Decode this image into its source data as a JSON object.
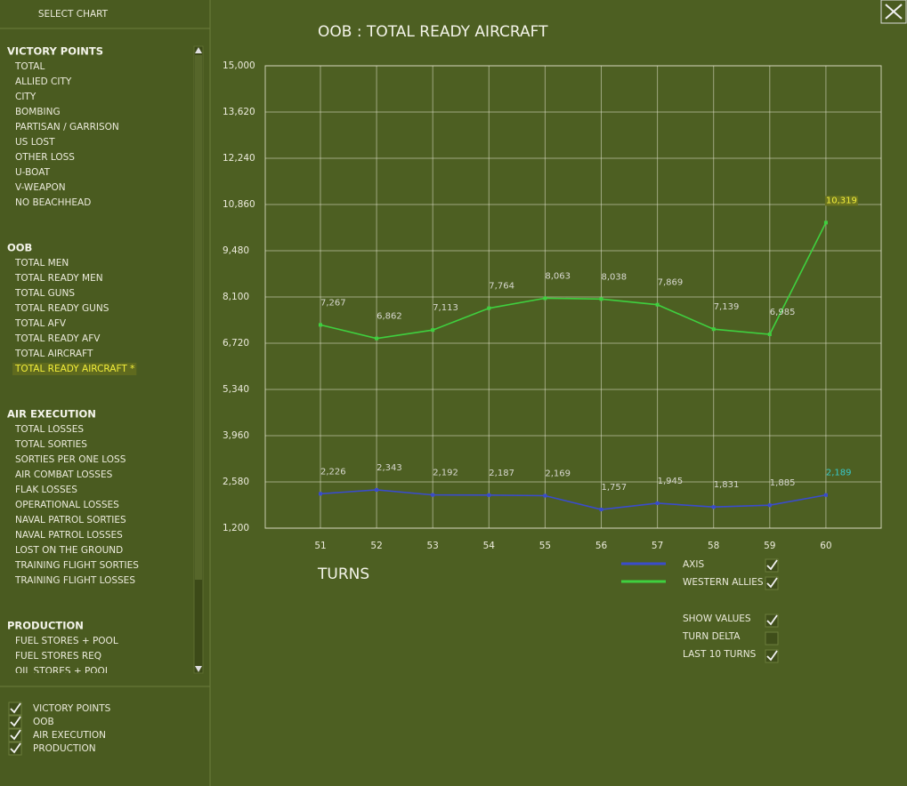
{
  "sidebar": {
    "header": "SELECT CHART",
    "groups": [
      {
        "title": "VICTORY POINTS",
        "items": [
          "TOTAL",
          "ALLIED CITY",
          "CITY",
          "BOMBING",
          "PARTISAN / GARRISON",
          "US LOST",
          "OTHER LOSS",
          "U-BOAT",
          "V-WEAPON",
          "NO BEACHHEAD"
        ]
      },
      {
        "title": "OOB",
        "items": [
          "TOTAL MEN",
          "TOTAL READY MEN",
          "TOTAL GUNS",
          "TOTAL READY GUNS",
          "TOTAL AFV",
          "TOTAL READY AFV",
          "TOTAL AIRCRAFT",
          "TOTAL READY AIRCRAFT *"
        ]
      },
      {
        "title": "AIR EXECUTION",
        "items": [
          "TOTAL LOSSES",
          "TOTAL SORTIES",
          "SORTIES PER ONE LOSS",
          "AIR COMBAT LOSSES",
          "FLAK LOSSES",
          "OPERATIONAL LOSSES",
          "NAVAL PATROL SORTIES",
          "NAVAL PATROL LOSSES",
          "LOST ON THE GROUND",
          "TRAINING FLIGHT SORTIES",
          "TRAINING FLIGHT LOSSES"
        ]
      },
      {
        "title": "PRODUCTION",
        "items": [
          "FUEL STORES + POOL",
          "FUEL STORES REQ",
          "OIL STORES + POOL"
        ]
      }
    ],
    "selected": [
      1,
      7
    ],
    "filters": [
      {
        "label": "VICTORY POINTS",
        "checked": true
      },
      {
        "label": "OOB",
        "checked": true
      },
      {
        "label": "AIR EXECUTION",
        "checked": true
      },
      {
        "label": "PRODUCTION",
        "checked": true
      }
    ]
  },
  "chart_data": {
    "type": "line",
    "title": "OOB : TOTAL READY AIRCRAFT",
    "x_label": "TURNS",
    "categories": [
      "51",
      "52",
      "53",
      "54",
      "55",
      "56",
      "57",
      "58",
      "59",
      "60"
    ],
    "ylim": [
      1200,
      15000
    ],
    "yticks": [
      {
        "value": 1200,
        "label": "1,200"
      },
      {
        "value": 2580,
        "label": "2,580"
      },
      {
        "value": 3960,
        "label": "3,960"
      },
      {
        "value": 5340,
        "label": "5,340"
      },
      {
        "value": 6720,
        "label": "6,720"
      },
      {
        "value": 8100,
        "label": "8,100"
      },
      {
        "value": 9480,
        "label": "9,480"
      },
      {
        "value": 10860,
        "label": "10,860"
      },
      {
        "value": 12240,
        "label": "12,240"
      },
      {
        "value": 13620,
        "label": "13,620"
      },
      {
        "value": 15000,
        "label": "15,000"
      }
    ],
    "grid": true,
    "series": [
      {
        "name": "AXIS",
        "color": "#3a4ccc",
        "visible": true,
        "values": [
          2226,
          2343,
          2192,
          2187,
          2169,
          1757,
          1945,
          1831,
          1885,
          2189
        ],
        "value_labels": [
          "2,226",
          "2,343",
          "2,192",
          "2,187",
          "2,169",
          "1,757",
          "1,945",
          "1,831",
          "1,885",
          "2,189"
        ]
      },
      {
        "name": "WESTERN ALLIES",
        "color": "#3fd03f",
        "visible": true,
        "values": [
          7267,
          6862,
          7113,
          7764,
          8063,
          8038,
          7869,
          7139,
          6985,
          10319
        ],
        "value_labels": [
          "7,267",
          "6,862",
          "7,113",
          "7,764",
          "8,063",
          "8,038",
          "7,869",
          "7,139",
          "6,985",
          "10,319"
        ]
      }
    ],
    "options": [
      {
        "label": "SHOW VALUES",
        "checked": true
      },
      {
        "label": "TURN DELTA",
        "checked": false
      },
      {
        "label": "LAST 10 TURNS",
        "checked": true
      }
    ]
  }
}
